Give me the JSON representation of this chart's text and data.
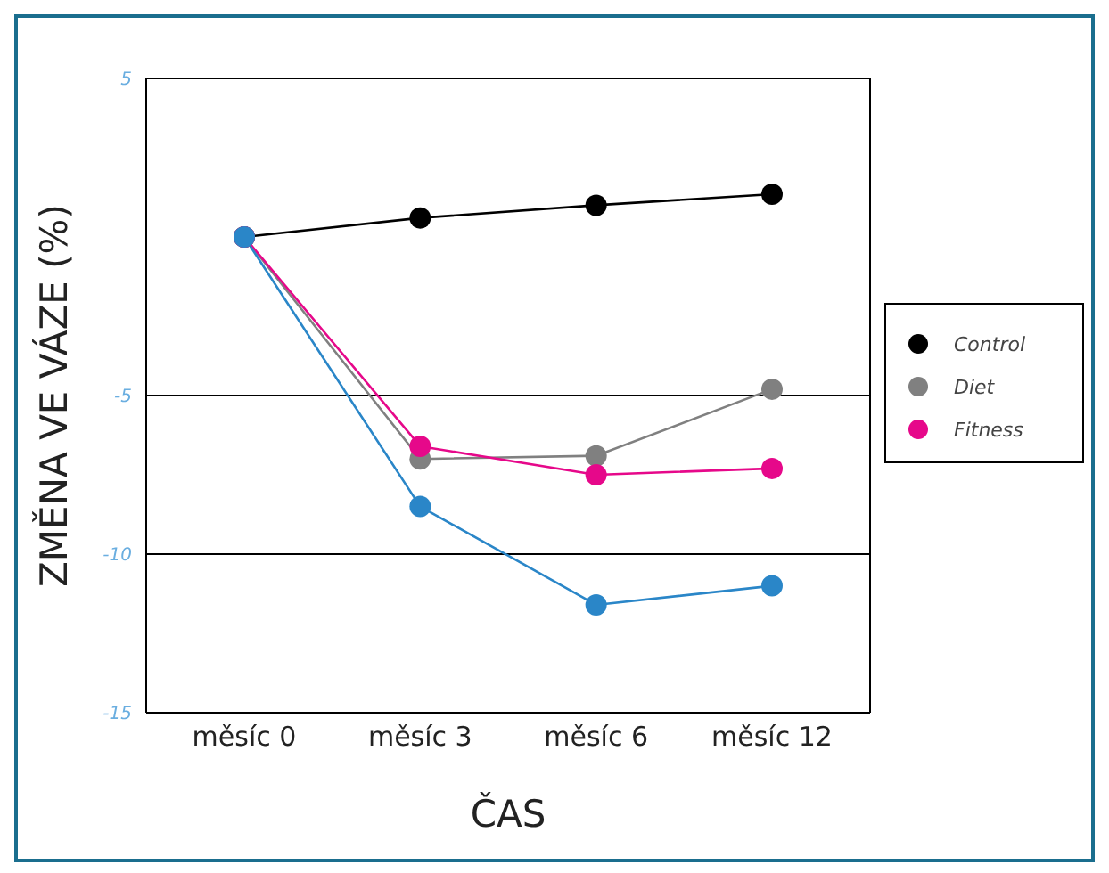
{
  "chart_data": {
    "type": "line",
    "xlabel": "ČAS",
    "ylabel": "ZMĚNA VE VÁZE (%)",
    "categories": [
      "měsíc 0",
      "měsíc 3",
      "měsíc 6",
      "měsíc 12"
    ],
    "series": [
      {
        "name": "Control",
        "color": "#000000",
        "values": [
          0,
          0.6,
          1.0,
          1.35
        ]
      },
      {
        "name": "Diet",
        "color": "#808080",
        "values": [
          0,
          -7.0,
          -6.9,
          -4.8
        ]
      },
      {
        "name": "Fitness",
        "color": "#e6088a",
        "values": [
          0,
          -6.6,
          -7.5,
          -7.3
        ]
      },
      {
        "color": "#2a86c8",
        "values": [
          0,
          -8.5,
          -11.6,
          -11.0
        ]
      }
    ],
    "ylim": [
      -15,
      5
    ],
    "yticks": [
      -15,
      -10,
      -5,
      5
    ],
    "grid": "y",
    "legend": "right",
    "marker": "circle",
    "line_style": "solid"
  }
}
